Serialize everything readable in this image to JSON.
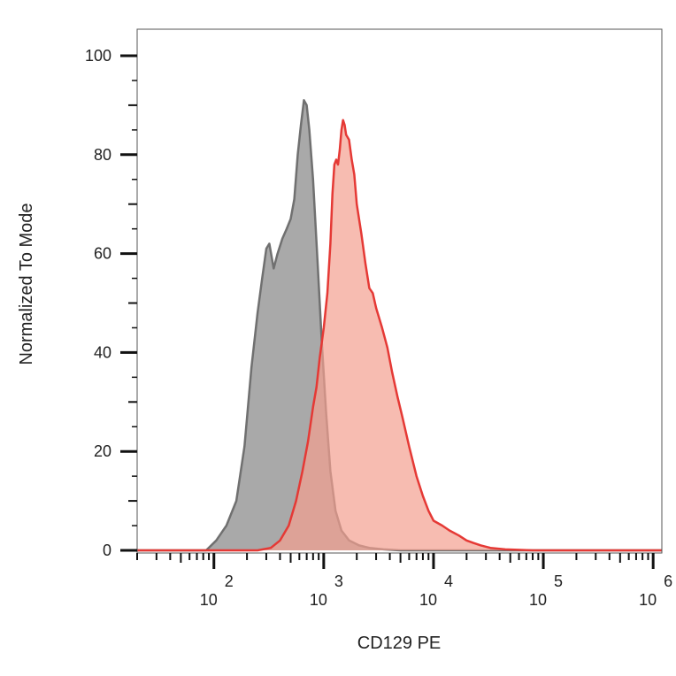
{
  "chart_data": {
    "type": "area",
    "xlabel": "CD129 PE",
    "ylabel": "Normalized To Mode",
    "x_scale": "log",
    "xlim": [
      20,
      1200000
    ],
    "ylim": [
      0,
      105
    ],
    "y_ticks": [
      {
        "value": 0,
        "label": "0"
      },
      {
        "value": 20,
        "label": "20"
      },
      {
        "value": 40,
        "label": "40"
      },
      {
        "value": 60,
        "label": "60"
      },
      {
        "value": 80,
        "label": "80"
      },
      {
        "value": 100,
        "label": "100"
      }
    ],
    "x_ticks": [
      {
        "value": 100,
        "base": "10",
        "exp": "2"
      },
      {
        "value": 1000,
        "base": "10",
        "exp": "3"
      },
      {
        "value": 10000,
        "base": "10",
        "exp": "4"
      },
      {
        "value": 100000,
        "base": "10",
        "exp": "5"
      },
      {
        "value": 1000000,
        "base": "10",
        "exp": "6"
      }
    ],
    "grid": false,
    "series": [
      {
        "color": "#707070",
        "fill": "#a9a9a9",
        "x": [
          20,
          85,
          105,
          130,
          160,
          190,
          220,
          250,
          275,
          300,
          320,
          350,
          380,
          420,
          460,
          500,
          540,
          580,
          620,
          660,
          700,
          740,
          800,
          880,
          960,
          1050,
          1150,
          1280,
          1450,
          1700,
          2100,
          2600,
          3500,
          5000,
          20000,
          1200000
        ],
        "y": [
          0,
          0,
          2,
          5,
          10,
          21,
          37,
          48,
          55,
          61,
          62,
          57,
          60,
          63,
          65,
          67,
          71,
          80,
          86,
          91,
          90,
          85,
          75,
          58,
          42,
          28,
          16,
          8,
          4,
          2,
          1,
          0.5,
          0.2,
          0,
          0,
          0
        ]
      },
      {
        "color": "#e53935",
        "fill": "#f4a090",
        "x": [
          20,
          250,
          330,
          400,
          480,
          560,
          640,
          720,
          800,
          860,
          920,
          1000,
          1080,
          1150,
          1200,
          1250,
          1300,
          1350,
          1400,
          1450,
          1500,
          1550,
          1600,
          1700,
          1800,
          1900,
          2000,
          2200,
          2400,
          2600,
          2800,
          3000,
          3400,
          3800,
          4200,
          4700,
          5200,
          6000,
          7000,
          8000,
          9000,
          10000,
          12000,
          14000,
          17000,
          20000,
          23000,
          27000,
          33000,
          45000,
          80000,
          1200000
        ],
        "y": [
          0,
          0,
          0.5,
          2,
          5,
          10,
          16,
          22,
          29,
          33,
          39,
          45,
          52,
          62,
          72,
          78,
          79,
          78,
          81,
          85,
          87,
          86,
          84,
          83,
          79,
          76,
          70,
          64,
          58,
          53,
          52,
          49,
          45,
          41,
          36,
          31,
          27,
          21,
          15,
          11,
          8,
          6,
          5,
          4,
          3,
          2,
          1.5,
          1,
          0.5,
          0.2,
          0,
          0
        ]
      }
    ]
  }
}
